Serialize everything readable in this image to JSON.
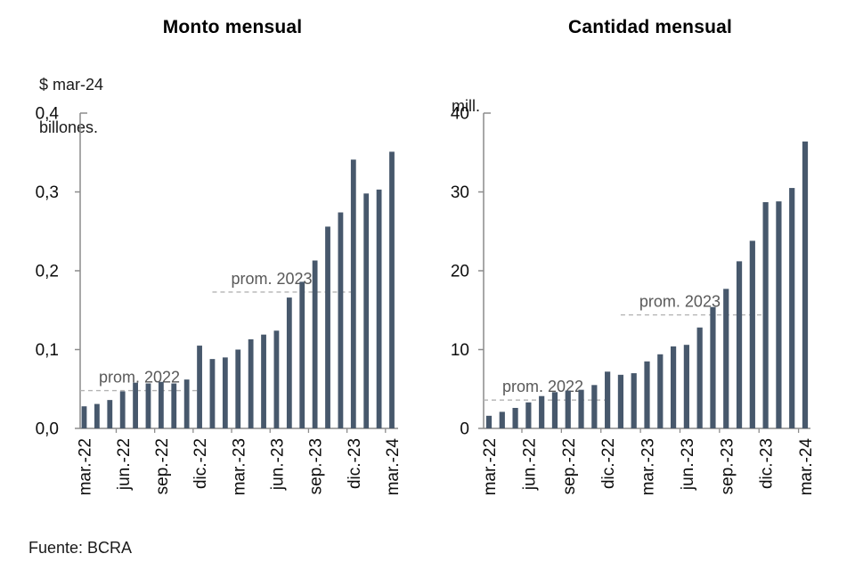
{
  "page": {
    "source_note": "Fuente: BCRA",
    "background": "#ffffff"
  },
  "colors": {
    "bar": "#47586c",
    "axis": "#8c8c8c",
    "dashed_line": "#b3b3b3",
    "annotation_text": "#595959",
    "tick_text": "#0d0d0d",
    "title_text": "#000000"
  },
  "chart_data": [
    {
      "type": "bar",
      "title": "Monto mensual",
      "unit_lines": [
        "$ mar-24",
        "billones."
      ],
      "ylabel": "$ mar-24 billones.",
      "xlabel": "",
      "ylim": [
        0,
        0.4
      ],
      "grid": false,
      "yticks": [
        {
          "label": "0,0",
          "value": 0.0
        },
        {
          "label": "0,1",
          "value": 0.1
        },
        {
          "label": "0,2",
          "value": 0.2
        },
        {
          "label": "0,3",
          "value": 0.3
        },
        {
          "label": "0,4",
          "value": 0.4
        }
      ],
      "categories": [
        "mar.-22",
        "abr.-22",
        "may.-22",
        "jun.-22",
        "jul.-22",
        "ago.-22",
        "sep.-22",
        "oct.-22",
        "nov.-22",
        "dic.-22",
        "ene.-23",
        "feb.-23",
        "mar.-23",
        "abr.-23",
        "may.-23",
        "jun.-23",
        "jul.-23",
        "ago.-23",
        "sep.-23",
        "oct.-23",
        "nov.-23",
        "dic.-23",
        "ene.-24",
        "feb.-24",
        "mar.-24"
      ],
      "shown_tick_labels": [
        "mar.-22",
        "jun.-22",
        "sep.-22",
        "dic.-22",
        "mar.-23",
        "jun.-23",
        "sep.-23",
        "dic.-23",
        "mar.-24"
      ],
      "values": [
        0.028,
        0.031,
        0.036,
        0.047,
        0.058,
        0.057,
        0.059,
        0.057,
        0.062,
        0.105,
        0.088,
        0.09,
        0.1,
        0.113,
        0.119,
        0.124,
        0.166,
        0.186,
        0.213,
        0.256,
        0.274,
        0.341,
        0.298,
        0.303,
        0.351
      ],
      "annotations": [
        {
          "label": "prom. 2022",
          "value": 0.048,
          "from_index": 0,
          "to_index": 9
        },
        {
          "label": "prom. 2023",
          "value": 0.173,
          "from_index": 10,
          "to_index": 21
        }
      ]
    },
    {
      "type": "bar",
      "title": "Cantidad mensual",
      "unit_lines": [
        "mill."
      ],
      "ylabel": "mill.",
      "xlabel": "",
      "ylim": [
        0,
        40
      ],
      "grid": false,
      "yticks": [
        {
          "label": "0",
          "value": 0
        },
        {
          "label": "10",
          "value": 10
        },
        {
          "label": "20",
          "value": 20
        },
        {
          "label": "30",
          "value": 30
        },
        {
          "label": "40",
          "value": 40
        }
      ],
      "categories": [
        "mar.-22",
        "abr.-22",
        "may.-22",
        "jun.-22",
        "jul.-22",
        "ago.-22",
        "sep.-22",
        "oct.-22",
        "nov.-22",
        "dic.-22",
        "ene.-23",
        "feb.-23",
        "mar.-23",
        "abr.-23",
        "may.-23",
        "jun.-23",
        "jul.-23",
        "ago.-23",
        "sep.-23",
        "oct.-23",
        "nov.-23",
        "dic.-23",
        "ene.-24",
        "feb.-24",
        "mar.-24"
      ],
      "shown_tick_labels": [
        "mar.-22",
        "jun.-22",
        "sep.-22",
        "dic.-22",
        "mar.-23",
        "jun.-23",
        "sep.-23",
        "dic.-23",
        "mar.-24"
      ],
      "values": [
        1.6,
        2.1,
        2.6,
        3.3,
        4.1,
        4.6,
        4.8,
        4.9,
        5.5,
        7.2,
        6.8,
        7.0,
        8.5,
        9.4,
        10.4,
        10.6,
        12.8,
        15.4,
        17.7,
        21.2,
        23.8,
        28.7,
        28.8,
        30.5,
        36.4
      ],
      "annotations": [
        {
          "label": "prom. 2022",
          "value": 3.6,
          "from_index": 0,
          "to_index": 9
        },
        {
          "label": "prom. 2023",
          "value": 14.4,
          "from_index": 10,
          "to_index": 21
        }
      ]
    }
  ]
}
